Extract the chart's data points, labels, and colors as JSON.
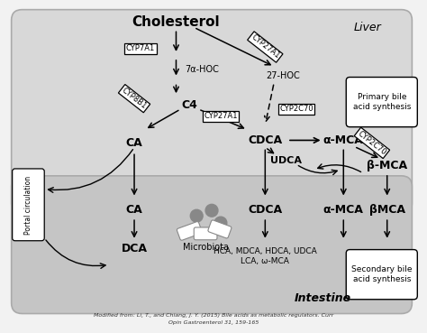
{
  "bg_color": "#f0f0f0",
  "liver_color": "#d8d8d8",
  "intestine_color": "#c8c8c8",
  "title": "Cholesterol",
  "liver_label": "Liver",
  "intestine_label": "Intestine",
  "portal_label": "Portal circulation",
  "primary_label": "Primary bile\nacid synthesis",
  "secondary_label": "Secondary bile\nacid synthesis",
  "citation_line1": "Modified from: Li, T., and Chiang, J. Y. (2015) Bile acids as metabolic regulators. Curr",
  "citation_line2": "Opin Gastroenterol 31, 159-165"
}
